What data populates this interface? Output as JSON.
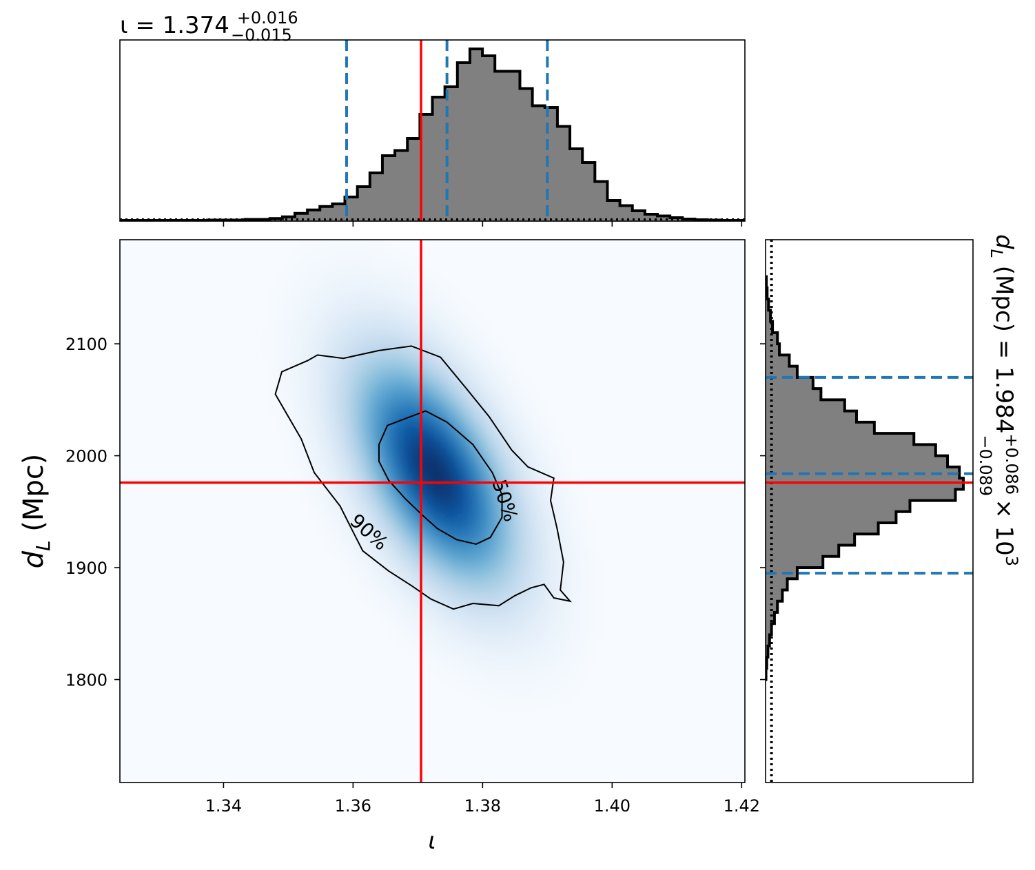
{
  "chart_data": [
    {
      "type": "histogram",
      "panel": "top-marginal",
      "title": {
        "prefix": "ι = 1.374",
        "sup": "+0.016",
        "sub": "−0.015"
      },
      "xlim": [
        1.324,
        1.4205
      ],
      "x_ticks": [
        1.34,
        1.36,
        1.38,
        1.4,
        1.42
      ],
      "bin_edges_start": 1.324,
      "bin_width": 0.00193,
      "bin_heights": [
        0.004,
        0.004,
        0.004,
        0.004,
        0.004,
        0.004,
        0.004,
        0.006,
        0.006,
        0.006,
        0.01,
        0.01,
        0.015,
        0.025,
        0.045,
        0.065,
        0.085,
        0.1,
        0.14,
        0.2,
        0.28,
        0.38,
        0.41,
        0.48,
        0.62,
        0.72,
        0.78,
        0.92,
        1.0,
        0.96,
        0.87,
        0.87,
        0.77,
        0.67,
        0.66,
        0.55,
        0.42,
        0.34,
        0.23,
        0.12,
        0.09,
        0.06,
        0.04,
        0.03,
        0.02,
        0.012,
        0.008,
        0.006,
        0.004,
        0.004
      ],
      "prior_level": 0.01,
      "vlines": {
        "true_value": {
          "x": 1.3705,
          "color": "#ff0000",
          "style": "solid"
        },
        "quantiles": {
          "x": [
            1.359,
            1.3745,
            1.39
          ],
          "color": "#1f77b4",
          "style": "dashed"
        }
      }
    },
    {
      "type": "heatmap",
      "panel": "joint",
      "xlabel": "ι",
      "ylabel": {
        "main": "d",
        "sub": "L",
        "rest": " (Mpc)"
      },
      "xlim": [
        1.324,
        1.4205
      ],
      "ylim": [
        1708,
        2193
      ],
      "x_ticks": [
        1.34,
        1.36,
        1.38,
        1.4,
        1.42
      ],
      "y_ticks": [
        1800,
        1900,
        2000,
        2100
      ],
      "colormap": "Blues",
      "density_peak": {
        "x": 1.3725,
        "y": 1985
      },
      "contours": [
        {
          "label": "50%",
          "label_at": {
            "x": 1.3835,
            "y": 1960
          },
          "points": [
            [
              1.364,
              2010
            ],
            [
              1.3653,
              2027
            ],
            [
              1.368,
              2033
            ],
            [
              1.3712,
              2040
            ],
            [
              1.3745,
              2030
            ],
            [
              1.3785,
              2010
            ],
            [
              1.3815,
              1985
            ],
            [
              1.383,
              1965
            ],
            [
              1.383,
              1945
            ],
            [
              1.3812,
              1927
            ],
            [
              1.379,
              1921
            ],
            [
              1.376,
              1925
            ],
            [
              1.373,
              1935
            ],
            [
              1.3705,
              1948
            ],
            [
              1.368,
              1962
            ],
            [
              1.3655,
              1978
            ],
            [
              1.364,
              1995
            ]
          ]
        },
        {
          "label": "90%",
          "label_at": {
            "x": 1.3625,
            "y": 1932
          },
          "points": [
            [
              1.3545,
              2090
            ],
            [
              1.3585,
              2087
            ],
            [
              1.364,
              2094
            ],
            [
              1.369,
              2098
            ],
            [
              1.3735,
              2088
            ],
            [
              1.3775,
              2060
            ],
            [
              1.381,
              2035
            ],
            [
              1.3845,
              2005
            ],
            [
              1.387,
              1990
            ],
            [
              1.391,
              1980
            ],
            [
              1.3905,
              1960
            ],
            [
              1.3915,
              1935
            ],
            [
              1.3925,
              1905
            ],
            [
              1.392,
              1880
            ],
            [
              1.3935,
              1870
            ],
            [
              1.391,
              1873
            ],
            [
              1.3895,
              1885
            ],
            [
              1.3875,
              1882
            ],
            [
              1.385,
              1875
            ],
            [
              1.3825,
              1866
            ],
            [
              1.3785,
              1868
            ],
            [
              1.3755,
              1863
            ],
            [
              1.372,
              1872
            ],
            [
              1.369,
              1884
            ],
            [
              1.3655,
              1897
            ],
            [
              1.3615,
              1915
            ],
            [
              1.36,
              1932
            ],
            [
              1.358,
              1955
            ],
            [
              1.354,
              1985
            ],
            [
              1.352,
              2015
            ],
            [
              1.35,
              2035
            ],
            [
              1.348,
              2055
            ],
            [
              1.349,
              2075
            ],
            [
              1.353,
              2085
            ]
          ]
        }
      ],
      "hline_true": {
        "y": 1976,
        "color": "#ff0000"
      },
      "vline_true": {
        "x": 1.3705,
        "color": "#ff0000"
      }
    },
    {
      "type": "histogram",
      "panel": "right-marginal",
      "orientation": "horizontal",
      "title": {
        "prefix_main": "d",
        "prefix_sub": "L",
        "prefix_rest": " (Mpc) = 1.984",
        "sup": "+0.086",
        "sub": "−0.089",
        "suffix": " × 10",
        "exp": "3"
      },
      "ylim": [
        1708,
        2193
      ],
      "bins": [
        [
          1800,
          1810,
          0.002
        ],
        [
          1810,
          1820,
          0.006
        ],
        [
          1820,
          1830,
          0.012
        ],
        [
          1830,
          1840,
          0.02
        ],
        [
          1840,
          1850,
          0.03
        ],
        [
          1850,
          1860,
          0.045
        ],
        [
          1860,
          1870,
          0.06
        ],
        [
          1870,
          1880,
          0.085
        ],
        [
          1880,
          1890,
          0.11
        ],
        [
          1890,
          1900,
          0.16
        ],
        [
          1900,
          1910,
          0.29
        ],
        [
          1910,
          1920,
          0.37
        ],
        [
          1920,
          1930,
          0.45
        ],
        [
          1930,
          1940,
          0.57
        ],
        [
          1940,
          1950,
          0.66
        ],
        [
          1950,
          1960,
          0.73
        ],
        [
          1960,
          1970,
          0.96
        ],
        [
          1970,
          1980,
          1.0
        ],
        [
          1980,
          1990,
          0.98
        ],
        [
          1990,
          2000,
          0.92
        ],
        [
          2000,
          2010,
          0.86
        ],
        [
          2010,
          2020,
          0.75
        ],
        [
          2020,
          2030,
          0.55
        ],
        [
          2030,
          2040,
          0.46
        ],
        [
          2040,
          2050,
          0.4
        ],
        [
          2050,
          2060,
          0.28
        ],
        [
          2060,
          2070,
          0.24
        ],
        [
          2070,
          2080,
          0.16
        ],
        [
          2080,
          2090,
          0.12
        ],
        [
          2090,
          2100,
          0.07
        ],
        [
          2100,
          2110,
          0.06
        ],
        [
          2110,
          2120,
          0.035
        ],
        [
          2120,
          2130,
          0.025
        ],
        [
          2130,
          2140,
          0.015
        ],
        [
          2140,
          2150,
          0.008
        ],
        [
          2150,
          2160,
          0.004
        ]
      ],
      "prior_level": 0.03,
      "hlines": {
        "true_value": {
          "y": 1976,
          "color": "#ff0000",
          "style": "solid"
        },
        "quantiles": {
          "y": [
            1895,
            1984,
            2070
          ],
          "color": "#1f77b4",
          "style": "dashed"
        }
      }
    }
  ]
}
